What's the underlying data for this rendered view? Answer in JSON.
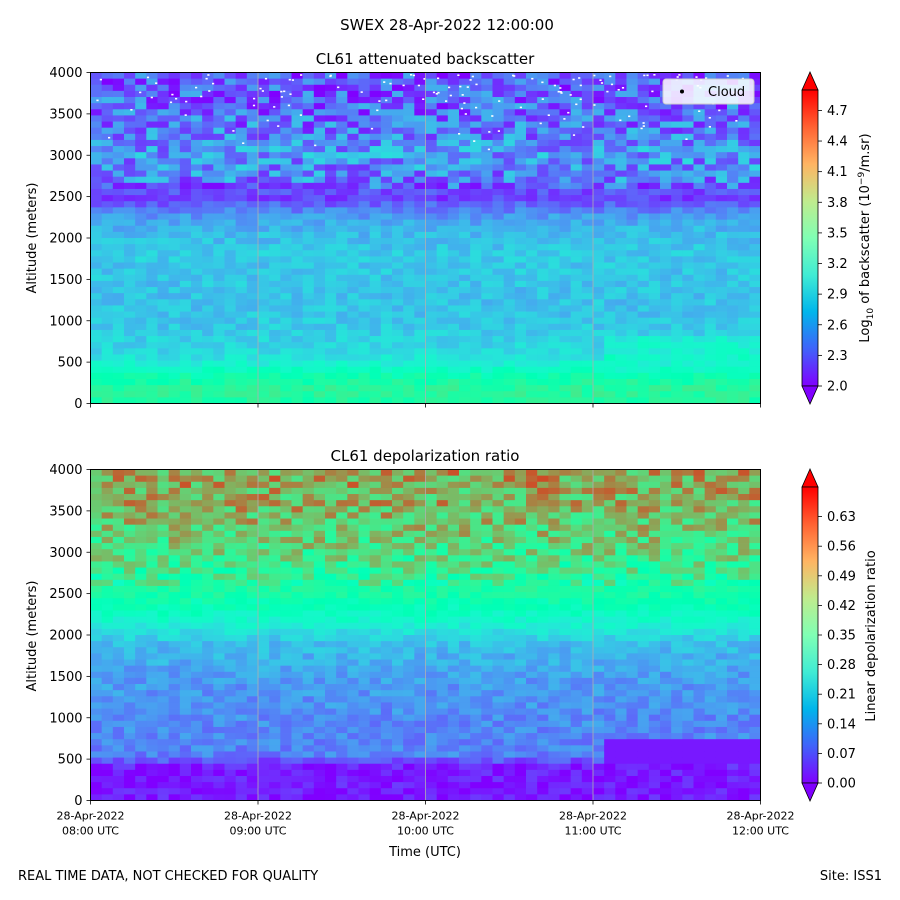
{
  "figure": {
    "suptitle": "SWEX 28-Apr-2022 12:00:00",
    "footer_left": "REAL TIME DATA, NOT CHECKED FOR QUALITY",
    "footer_right": "Site: ISS1"
  },
  "chart_data": [
    {
      "type": "heatmap",
      "title": "CL61 attenuated backscatter",
      "ylabel": "Altitude (meters)",
      "xlabel": "",
      "x_range": [
        "2022-04-28T08:00Z",
        "2022-04-28T12:00Z"
      ],
      "xticks": [
        {
          "date": "28-Apr-2022",
          "time": "08:00 UTC"
        },
        {
          "date": "28-Apr-2022",
          "time": "09:00 UTC"
        },
        {
          "date": "28-Apr-2022",
          "time": "10:00 UTC"
        },
        {
          "date": "28-Apr-2022",
          "time": "11:00 UTC"
        },
        {
          "date": "28-Apr-2022",
          "time": "12:00 UTC"
        }
      ],
      "show_xtick_labels": false,
      "ylim": [
        0,
        4000
      ],
      "yticks": [
        0,
        500,
        1000,
        1500,
        2000,
        2500,
        3000,
        3500,
        4000
      ],
      "grid": "vertical",
      "colormap": "rainbow",
      "colorbar": {
        "label_main": "Log",
        "label_sub": "10",
        "label_mid": " of backscatter (10",
        "label_sup": "−9",
        "label_end": "/m.sr)",
        "range": [
          2.0,
          4.9
        ],
        "ticks": [
          "2.0",
          "2.3",
          "2.6",
          "2.9",
          "3.2",
          "3.5",
          "3.8",
          "4.1",
          "4.4",
          "4.7"
        ]
      },
      "legend": {
        "label": "Cloud",
        "placement": "top-right"
      },
      "profile": [
        {
          "alt": 0,
          "value": 3.6
        },
        {
          "alt": 150,
          "value": 3.7
        },
        {
          "alt": 300,
          "value": 3.55
        },
        {
          "alt": 450,
          "value": 3.2
        },
        {
          "alt": 600,
          "value": 2.95
        },
        {
          "alt": 900,
          "value": 2.85
        },
        {
          "alt": 1300,
          "value": 2.8
        },
        {
          "alt": 1800,
          "value": 2.85
        },
        {
          "alt": 2100,
          "value": 2.75
        },
        {
          "alt": 2300,
          "value": 2.55
        },
        {
          "alt": 2500,
          "value": 2.2
        },
        {
          "alt": 2700,
          "value": 2.5
        },
        {
          "alt": 3000,
          "value": 2.6
        },
        {
          "alt": 3500,
          "value": 2.4
        },
        {
          "alt": 4000,
          "value": 2.3
        }
      ]
    },
    {
      "type": "heatmap",
      "title": "CL61 depolarization ratio",
      "ylabel": "Altitude (meters)",
      "xlabel": "Time (UTC)",
      "x_range": [
        "2022-04-28T08:00Z",
        "2022-04-28T12:00Z"
      ],
      "xticks": [
        {
          "date": "28-Apr-2022",
          "time": "08:00 UTC"
        },
        {
          "date": "28-Apr-2022",
          "time": "09:00 UTC"
        },
        {
          "date": "28-Apr-2022",
          "time": "10:00 UTC"
        },
        {
          "date": "28-Apr-2022",
          "time": "11:00 UTC"
        },
        {
          "date": "28-Apr-2022",
          "time": "12:00 UTC"
        }
      ],
      "show_xtick_labels": true,
      "ylim": [
        0,
        4000
      ],
      "yticks": [
        0,
        500,
        1000,
        1500,
        2000,
        2500,
        3000,
        3500,
        4000
      ],
      "grid": "vertical",
      "colormap": "rainbow",
      "colorbar": {
        "label": "Linear depolarization ratio",
        "range": [
          0.0,
          0.7
        ],
        "ticks": [
          "0.00",
          "0.07",
          "0.14",
          "0.21",
          "0.28",
          "0.35",
          "0.42",
          "0.49",
          "0.56",
          "0.63"
        ]
      },
      "profile": [
        {
          "alt": 0,
          "value": 0.02
        },
        {
          "alt": 400,
          "value": 0.02
        },
        {
          "alt": 550,
          "value": 0.12
        },
        {
          "alt": 1000,
          "value": 0.13
        },
        {
          "alt": 1500,
          "value": 0.15
        },
        {
          "alt": 1900,
          "value": 0.19
        },
        {
          "alt": 2200,
          "value": 0.3
        },
        {
          "alt": 2500,
          "value": 0.38
        },
        {
          "alt": 3000,
          "value": 0.46
        },
        {
          "alt": 3500,
          "value": 0.52
        },
        {
          "alt": 4000,
          "value": 0.55
        }
      ]
    }
  ]
}
